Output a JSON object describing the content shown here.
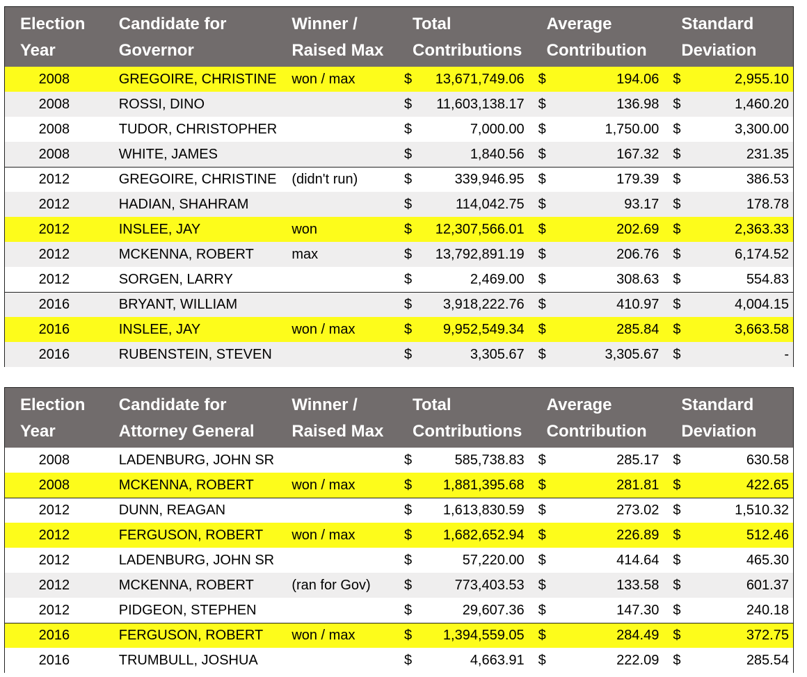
{
  "governor_table": {
    "headers": {
      "year": [
        "Election",
        "Year"
      ],
      "candidate": [
        "Candidate for",
        "Governor"
      ],
      "winner": [
        "Winner /",
        "Raised Max"
      ],
      "total": [
        "Total",
        "Contributions"
      ],
      "average": [
        "Average",
        "Contribution"
      ],
      "sd": [
        "Standard",
        "Deviation"
      ]
    },
    "currency_symbol": "$",
    "rows": [
      {
        "year": "2008",
        "candidate": "GREGOIRE, CHRISTINE",
        "winner": "won / max",
        "total": "13,671,749.06",
        "average": "194.06",
        "sd": "2,955.10",
        "highlight": true
      },
      {
        "year": "2008",
        "candidate": "ROSSI, DINO",
        "winner": "",
        "total": "11,603,138.17",
        "average": "136.98",
        "sd": "1,460.20"
      },
      {
        "year": "2008",
        "candidate": "TUDOR, CHRISTOPHER",
        "winner": "",
        "total": "7,000.00",
        "average": "1,750.00",
        "sd": "3,300.00"
      },
      {
        "year": "2008",
        "candidate": "WHITE, JAMES",
        "winner": "",
        "total": "1,840.56",
        "average": "167.32",
        "sd": "231.35"
      },
      {
        "year": "2012",
        "candidate": "GREGOIRE, CHRISTINE",
        "winner": "(didn't run)",
        "total": "339,946.95",
        "average": "179.39",
        "sd": "386.53"
      },
      {
        "year": "2012",
        "candidate": "HADIAN, SHAHRAM",
        "winner": "",
        "total": "114,042.75",
        "average": "93.17",
        "sd": "178.78"
      },
      {
        "year": "2012",
        "candidate": "INSLEE, JAY",
        "winner": "won",
        "total": "12,307,566.01",
        "average": "202.69",
        "sd": "2,363.33",
        "highlight": true
      },
      {
        "year": "2012",
        "candidate": "MCKENNA, ROBERT",
        "winner": "max",
        "total": "13,792,891.19",
        "average": "206.76",
        "sd": "6,174.52"
      },
      {
        "year": "2012",
        "candidate": "SORGEN, LARRY",
        "winner": "",
        "total": "2,469.00",
        "average": "308.63",
        "sd": "554.83"
      },
      {
        "year": "2016",
        "candidate": "BRYANT, WILLIAM",
        "winner": "",
        "total": "3,918,222.76",
        "average": "410.97",
        "sd": "4,004.15"
      },
      {
        "year": "2016",
        "candidate": "INSLEE, JAY",
        "winner": "won / max",
        "total": "9,952,549.34",
        "average": "285.84",
        "sd": "3,663.58",
        "highlight": true
      },
      {
        "year": "2016",
        "candidate": "RUBENSTEIN, STEVEN",
        "winner": "",
        "total": "3,305.67",
        "average": "3,305.67",
        "sd": "-"
      }
    ]
  },
  "ag_table": {
    "headers": {
      "year": [
        "Election",
        "Year"
      ],
      "candidate": [
        "Candidate for",
        "Attorney General"
      ],
      "winner": [
        "Winner /",
        "Raised Max"
      ],
      "total": [
        "Total",
        "Contributions"
      ],
      "average": [
        "Average",
        "Contribution"
      ],
      "sd": [
        "Standard",
        "Deviation"
      ]
    },
    "currency_symbol": "$",
    "rows": [
      {
        "year": "2008",
        "candidate": "LADENBURG, JOHN SR",
        "winner": "",
        "total": "585,738.83",
        "average": "285.17",
        "sd": "630.58"
      },
      {
        "year": "2008",
        "candidate": "MCKENNA, ROBERT",
        "winner": "won / max",
        "total": "1,881,395.68",
        "average": "281.81",
        "sd": "422.65",
        "highlight": true
      },
      {
        "year": "2012",
        "candidate": "DUNN, REAGAN",
        "winner": "",
        "total": "1,613,830.59",
        "average": "273.02",
        "sd": "1,510.32"
      },
      {
        "year": "2012",
        "candidate": "FERGUSON, ROBERT",
        "winner": "won / max",
        "total": "1,682,652.94",
        "average": "226.89",
        "sd": "512.46",
        "highlight": true
      },
      {
        "year": "2012",
        "candidate": "LADENBURG, JOHN SR",
        "winner": "",
        "total": "57,220.00",
        "average": "414.64",
        "sd": "465.30"
      },
      {
        "year": "2012",
        "candidate": "MCKENNA, ROBERT",
        "winner": "(ran for Gov)",
        "total": "773,403.53",
        "average": "133.58",
        "sd": "601.37"
      },
      {
        "year": "2012",
        "candidate": "PIDGEON, STEPHEN",
        "winner": "",
        "total": "29,607.36",
        "average": "147.30",
        "sd": "240.18"
      },
      {
        "year": "2016",
        "candidate": "FERGUSON, ROBERT",
        "winner": "won / max",
        "total": "1,394,559.05",
        "average": "284.49",
        "sd": "372.75",
        "highlight": true
      },
      {
        "year": "2016",
        "candidate": "TRUMBULL, JOSHUA",
        "winner": "",
        "total": "4,663.91",
        "average": "222.09",
        "sd": "285.54"
      }
    ]
  },
  "colors": {
    "header_bg": "#716c6c",
    "highlight": "#fdfc1b",
    "stripe": "#efeeee"
  }
}
